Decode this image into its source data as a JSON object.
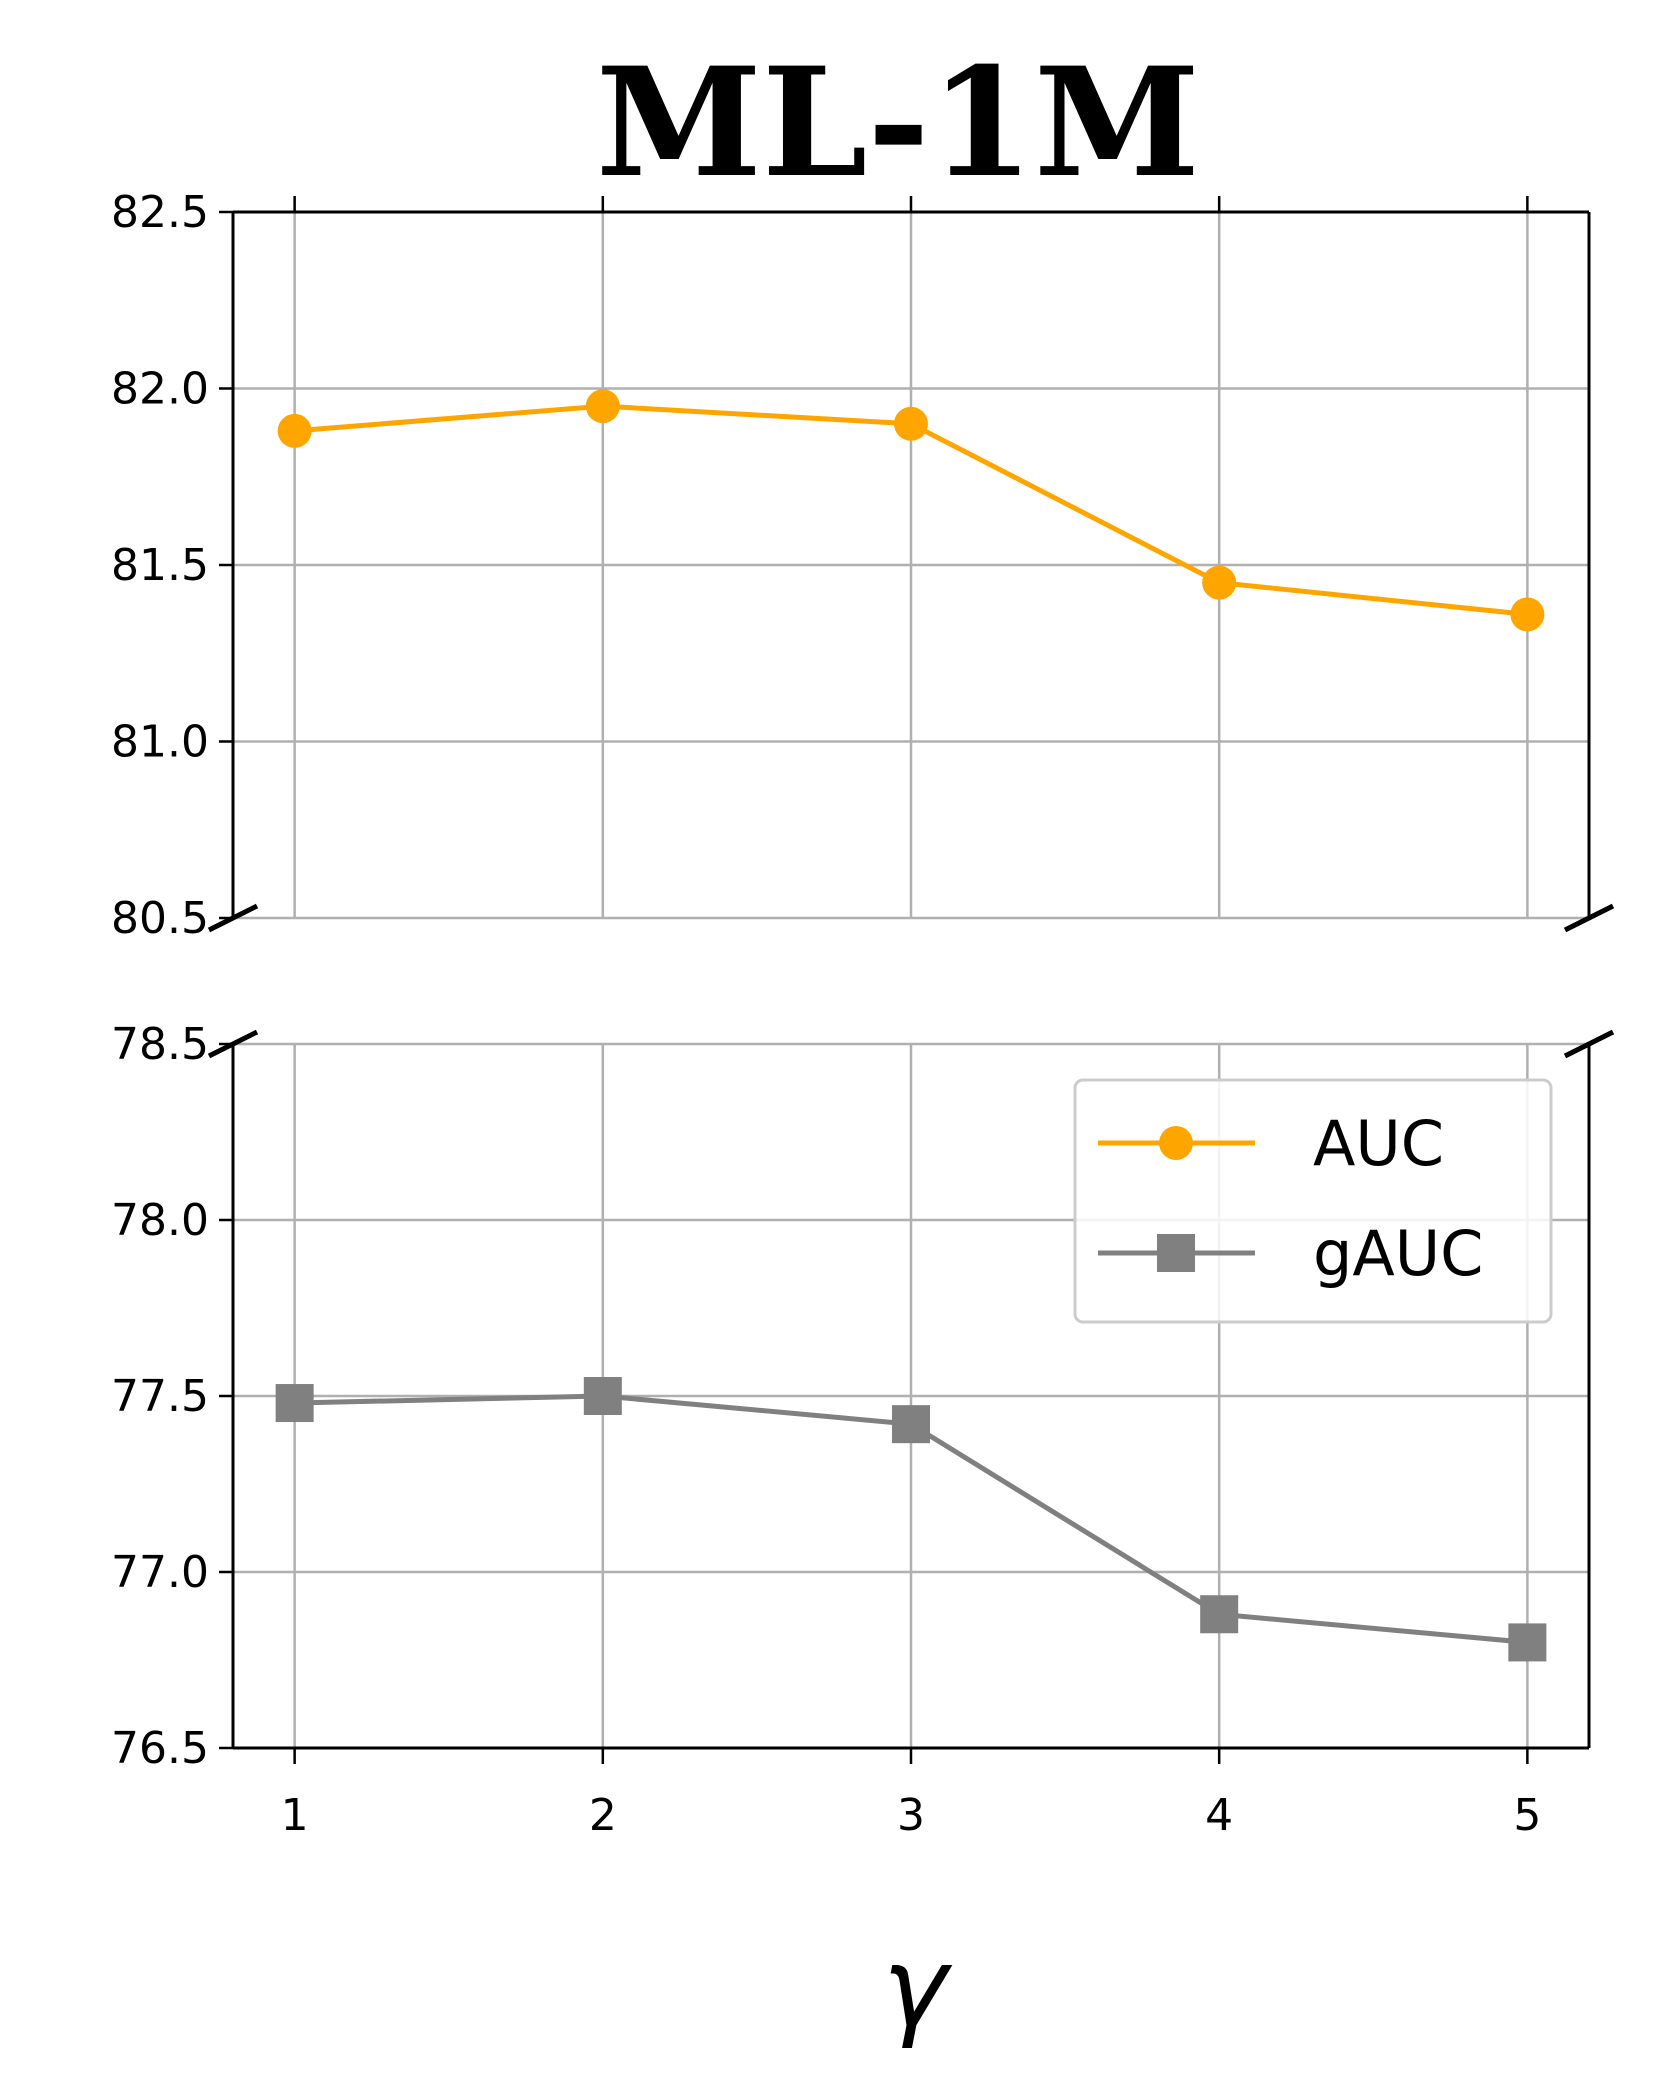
{
  "chart_data": {
    "type": "line",
    "title": "ML-1M",
    "xlabel": "γ",
    "ylabel": "",
    "x": [
      1,
      2,
      3,
      4,
      5
    ],
    "x_ticks": [
      "1",
      "2",
      "3",
      "4",
      "5"
    ],
    "xlim": [
      0.8,
      5.2
    ],
    "grid": true,
    "broken_y_axis": true,
    "legend_position": "upper-right (lower panel)",
    "panels": [
      {
        "name": "upper",
        "ylim": [
          80.5,
          82.5
        ],
        "y_ticks": [
          "80.5",
          "81.0",
          "81.5",
          "82.0",
          "82.5"
        ],
        "series_ref": "AUC"
      },
      {
        "name": "lower",
        "ylim": [
          76.5,
          78.5
        ],
        "y_ticks": [
          "76.5",
          "77.0",
          "77.5",
          "78.0",
          "78.5"
        ],
        "series_ref": "gAUC"
      }
    ],
    "series": [
      {
        "name": "AUC",
        "color": "#FFA500",
        "marker": "circle",
        "values": [
          81.88,
          81.95,
          81.9,
          81.45,
          81.36
        ]
      },
      {
        "name": "gAUC",
        "color": "#808080",
        "marker": "square",
        "values": [
          77.48,
          77.5,
          77.42,
          76.88,
          76.8
        ]
      }
    ]
  }
}
